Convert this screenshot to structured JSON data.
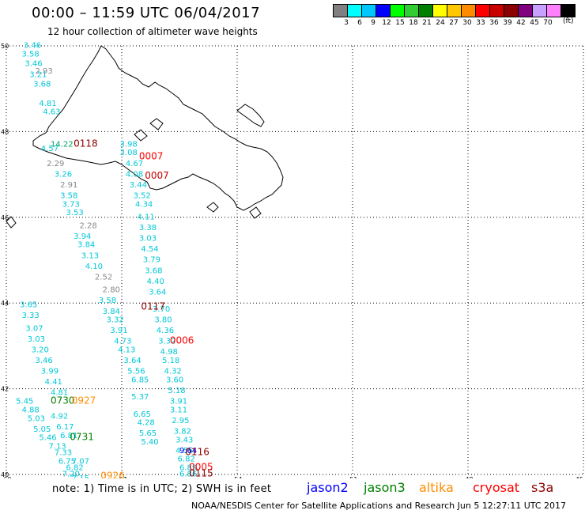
{
  "title": "00:00 – 11:59 UTC 06/04/2017",
  "subtitle": "12 hour collection of altimeter wave heights",
  "legend": {
    "colors": [
      "#808080",
      "#00ffff",
      "#00c8ff",
      "#0000ff",
      "#00ff00",
      "#32cd32",
      "#008000",
      "#ffff00",
      "#ffc800",
      "#ff8c00",
      "#ff0000",
      "#c80000",
      "#8b0000",
      "#800080",
      "#c8a0ff",
      "#ff80ff",
      "#000000"
    ],
    "values": [
      "3",
      "6",
      "9",
      "12",
      "15",
      "18",
      "21",
      "24",
      "27",
      "30",
      "33",
      "36",
      "39",
      "42",
      "45",
      "70"
    ],
    "unit": "(ft)"
  },
  "axes": {
    "lat_labels": [
      "50",
      "48",
      "46",
      "44",
      "42",
      "40"
    ],
    "lon_labels": [
      "-60",
      "-57",
      "-54",
      "-51",
      "-48",
      "-45"
    ]
  },
  "tracks": [
    {
      "color": "#00c8d8",
      "points": [
        {
          "lon": -59.55,
          "lat": 49.95,
          "text": "3.46"
        },
        {
          "lon": -59.6,
          "lat": 49.75,
          "text": "3.58"
        },
        {
          "lon": -59.52,
          "lat": 49.53,
          "text": "3.46"
        },
        {
          "lon": -59.4,
          "lat": 49.27,
          "text": "3.21"
        },
        {
          "lon": -59.3,
          "lat": 49.05,
          "text": "3.68"
        },
        {
          "lon": -59.15,
          "lat": 48.6,
          "text": "4.81"
        },
        {
          "lon": -59.05,
          "lat": 48.4,
          "text": "4.63"
        }
      ]
    },
    {
      "color": "#00c8d8",
      "points": [
        {
          "lon": -59.1,
          "lat": 47.55,
          "text": "4.57"
        },
        {
          "lon": -58.75,
          "lat": 46.95,
          "text": "3.26"
        },
        {
          "lon": -58.6,
          "lat": 46.45,
          "text": "3.58"
        },
        {
          "lon": -58.55,
          "lat": 46.25,
          "text": "3.73"
        },
        {
          "lon": -58.45,
          "lat": 46.05,
          "text": "3.53"
        },
        {
          "lon": -58.25,
          "lat": 45.5,
          "text": "3.94"
        },
        {
          "lon": -58.15,
          "lat": 45.3,
          "text": "3.84"
        },
        {
          "lon": -58.05,
          "lat": 45.05,
          "text": "3.13"
        },
        {
          "lon": -57.95,
          "lat": 44.8,
          "text": "4.10"
        },
        {
          "lon": -57.6,
          "lat": 44.0,
          "text": "3.58"
        },
        {
          "lon": -57.5,
          "lat": 43.75,
          "text": "3.84"
        },
        {
          "lon": -57.4,
          "lat": 43.55,
          "text": "3.32"
        },
        {
          "lon": -57.3,
          "lat": 43.3,
          "text": "3.91"
        },
        {
          "lon": -57.2,
          "lat": 43.05,
          "text": "4.73"
        },
        {
          "lon": -57.1,
          "lat": 42.85,
          "text": "4.13"
        },
        {
          "lon": -56.95,
          "lat": 42.6,
          "text": "3.64"
        },
        {
          "lon": -56.85,
          "lat": 42.35,
          "text": "5.56"
        },
        {
          "lon": -56.75,
          "lat": 42.15,
          "text": "6.85"
        }
      ]
    },
    {
      "color": "#00c8d8",
      "points": [
        {
          "lon": -57.05,
          "lat": 47.65,
          "text": "3.98"
        },
        {
          "lon": -57.05,
          "lat": 47.45,
          "text": "3.08"
        },
        {
          "lon": -56.9,
          "lat": 47.2,
          "text": "4.67"
        },
        {
          "lon": -56.9,
          "lat": 46.95,
          "text": "4.08"
        },
        {
          "lon": -56.8,
          "lat": 46.7,
          "text": "3.44"
        },
        {
          "lon": -56.7,
          "lat": 46.45,
          "text": "3.52"
        },
        {
          "lon": -56.65,
          "lat": 46.25,
          "text": "4.34"
        },
        {
          "lon": -56.6,
          "lat": 45.95,
          "text": "4.11"
        },
        {
          "lon": -56.55,
          "lat": 45.7,
          "text": "3.38"
        },
        {
          "lon": -56.55,
          "lat": 45.45,
          "text": "3.03"
        },
        {
          "lon": -56.5,
          "lat": 45.2,
          "text": "4.54"
        },
        {
          "lon": -56.45,
          "lat": 44.95,
          "text": "3.79"
        },
        {
          "lon": -56.4,
          "lat": 44.7,
          "text": "3.68"
        },
        {
          "lon": -56.35,
          "lat": 44.45,
          "text": "4.40"
        },
        {
          "lon": -56.3,
          "lat": 44.2,
          "text": "3.64"
        },
        {
          "lon": -56.2,
          "lat": 43.8,
          "text": "3.70"
        },
        {
          "lon": -56.15,
          "lat": 43.55,
          "text": "3.80"
        },
        {
          "lon": -56.1,
          "lat": 43.3,
          "text": "4.36"
        },
        {
          "lon": -56.05,
          "lat": 43.05,
          "text": "3.32"
        },
        {
          "lon": -56.0,
          "lat": 42.8,
          "text": "4.98"
        },
        {
          "lon": -55.95,
          "lat": 42.6,
          "text": "5.18"
        },
        {
          "lon": -55.9,
          "lat": 42.35,
          "text": "4.32"
        },
        {
          "lon": -55.85,
          "lat": 42.15,
          "text": "3.60"
        },
        {
          "lon": -55.8,
          "lat": 41.9,
          "text": "5.18"
        },
        {
          "lon": -55.75,
          "lat": 41.65,
          "text": "3.91"
        },
        {
          "lon": -55.75,
          "lat": 41.45,
          "text": "3.11"
        },
        {
          "lon": -55.7,
          "lat": 41.2,
          "text": "2.95"
        },
        {
          "lon": -55.65,
          "lat": 40.95,
          "text": "3.82"
        },
        {
          "lon": -55.6,
          "lat": 40.75,
          "text": "3.43"
        },
        {
          "lon": -55.6,
          "lat": 40.5,
          "text": "4.55"
        },
        {
          "lon": -55.55,
          "lat": 40.3,
          "text": "6.82"
        },
        {
          "lon": -55.5,
          "lat": 40.1,
          "text": "6.89"
        },
        {
          "lon": -55.5,
          "lat": 39.95,
          "text": "6.86"
        }
      ]
    },
    {
      "color": "#00c8d8",
      "points": [
        {
          "lon": -56.75,
          "lat": 41.75,
          "text": "5.37"
        },
        {
          "lon": -56.7,
          "lat": 41.35,
          "text": "6.65"
        },
        {
          "lon": -56.6,
          "lat": 41.15,
          "text": "4.28"
        },
        {
          "lon": -56.55,
          "lat": 40.9,
          "text": "5.65"
        },
        {
          "lon": -56.5,
          "lat": 40.7,
          "text": "5.40"
        }
      ]
    },
    {
      "color": "#00c8d8",
      "points": [
        {
          "lon": -59.65,
          "lat": 43.9,
          "text": "3.65"
        },
        {
          "lon": -59.6,
          "lat": 43.65,
          "text": "3.33"
        },
        {
          "lon": -59.5,
          "lat": 43.35,
          "text": "3.07"
        },
        {
          "lon": -59.45,
          "lat": 43.1,
          "text": "3.03"
        },
        {
          "lon": -59.35,
          "lat": 42.85,
          "text": "3.20"
        },
        {
          "lon": -59.25,
          "lat": 42.6,
          "text": "3.46"
        },
        {
          "lon": -59.1,
          "lat": 42.35,
          "text": "3.99"
        },
        {
          "lon": -59.0,
          "lat": 42.1,
          "text": "4.41"
        },
        {
          "lon": -58.85,
          "lat": 41.85,
          "text": "4.81"
        },
        {
          "lon": -59.75,
          "lat": 41.65,
          "text": "5.45"
        },
        {
          "lon": -59.6,
          "lat": 41.45,
          "text": "4.88"
        },
        {
          "lon": -59.45,
          "lat": 41.25,
          "text": "5.03"
        },
        {
          "lon": -58.85,
          "lat": 41.3,
          "text": "4.92"
        },
        {
          "lon": -59.3,
          "lat": 41.0,
          "text": "5.05"
        },
        {
          "lon": -58.7,
          "lat": 41.05,
          "text": "6.17"
        },
        {
          "lon": -59.15,
          "lat": 40.8,
          "text": "5.46"
        },
        {
          "lon": -58.6,
          "lat": 40.85,
          "text": "6.81"
        },
        {
          "lon": -58.9,
          "lat": 40.6,
          "text": "7.13"
        },
        {
          "lon": -58.75,
          "lat": 40.45,
          "text": "7.33"
        },
        {
          "lon": -58.65,
          "lat": 40.25,
          "text": "6.75"
        },
        {
          "lon": -58.3,
          "lat": 40.25,
          "text": "7.07"
        },
        {
          "lon": -58.45,
          "lat": 40.1,
          "text": "6.82"
        },
        {
          "lon": -58.55,
          "lat": 39.95,
          "text": "7.20"
        },
        {
          "lon": -58.3,
          "lat": 39.85,
          "text": "7.15"
        }
      ]
    },
    {
      "color": "#888888",
      "points": [
        {
          "lon": -59.25,
          "lat": 49.35,
          "text": "2.93"
        },
        {
          "lon": -58.95,
          "lat": 47.2,
          "text": "2.29"
        },
        {
          "lon": -58.6,
          "lat": 46.7,
          "text": "2.91"
        },
        {
          "lon": -58.1,
          "lat": 45.75,
          "text": "2.28"
        },
        {
          "lon": -57.7,
          "lat": 44.55,
          "text": "2.52"
        },
        {
          "lon": -57.5,
          "lat": 44.25,
          "text": "2.80"
        }
      ]
    },
    {
      "color": "#00a060",
      "points": [
        {
          "lon": -58.85,
          "lat": 47.65,
          "text": "14.22"
        }
      ]
    },
    {
      "color": "#0000ff",
      "points": [
        {
          "lon": -55.5,
          "lat": 40.5,
          "text": "9.64"
        }
      ]
    }
  ],
  "passes": [
    {
      "text": "0118",
      "color": "#8b0000",
      "lon": -58.25,
      "lat": 47.65
    },
    {
      "text": "0007",
      "color": "#ff0000",
      "lon": -56.55,
      "lat": 47.35
    },
    {
      "text": "0007",
      "color": "#c80000",
      "lon": -56.4,
      "lat": 46.9
    },
    {
      "text": "0117",
      "color": "#8b0000",
      "lon": -56.5,
      "lat": 43.85
    },
    {
      "text": "0006",
      "color": "#ff0000",
      "lon": -55.75,
      "lat": 43.05
    },
    {
      "text": "0730",
      "color": "#008000",
      "lon": -58.85,
      "lat": 41.65
    },
    {
      "text": "0927",
      "color": "#ff8c00",
      "lon": -58.3,
      "lat": 41.65
    },
    {
      "text": "0731",
      "color": "#008000",
      "lon": -58.35,
      "lat": 40.8
    },
    {
      "text": "0926",
      "color": "#ff8c00",
      "lon": -57.55,
      "lat": 39.9
    },
    {
      "text": "0116",
      "color": "#8b0000",
      "lon": -55.35,
      "lat": 40.45
    },
    {
      "text": "0005",
      "color": "#ff0000",
      "lon": -55.25,
      "lat": 40.1
    },
    {
      "text": "0115",
      "color": "#8b0000",
      "lon": -55.25,
      "lat": 39.95
    }
  ],
  "footer": {
    "note": "note:  1) Time is in UTC;  2) SWH is in feet",
    "satellites": [
      {
        "name": "jason2",
        "color": "#0000ff"
      },
      {
        "name": "jason3",
        "color": "#008000"
      },
      {
        "name": "altika",
        "color": "#ff8c00"
      },
      {
        "name": "cryosat",
        "color": "#ff0000"
      },
      {
        "name": "s3a",
        "color": "#8b0000"
      }
    ],
    "credits": "NOAA/NESDIS Center for Satellite Applications and Research    Jun  5 12:27:11 UTC 2017"
  }
}
